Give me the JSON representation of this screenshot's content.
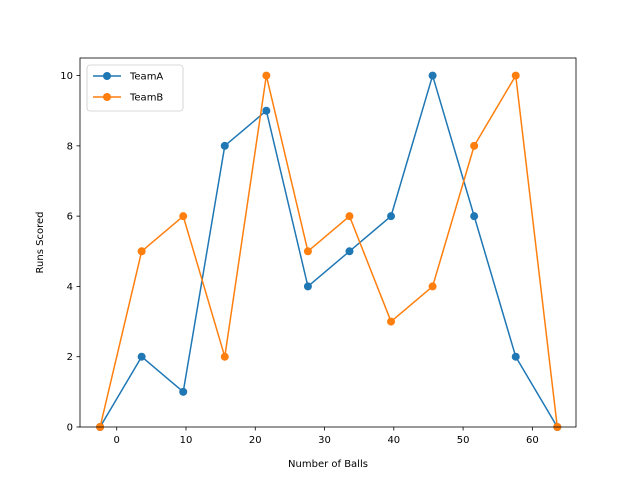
{
  "chart_data": {
    "type": "line",
    "title": "",
    "xlabel": "Number of Balls",
    "ylabel": "Runs Scored",
    "xlim": [
      -5.3,
      66.3
    ],
    "ylim": [
      0,
      10.5
    ],
    "xticks": [
      0,
      10,
      20,
      30,
      40,
      50,
      60
    ],
    "yticks": [
      0,
      2,
      4,
      6,
      8,
      10
    ],
    "xtick_labels": [
      "0",
      "10",
      "20",
      "30",
      "40",
      "50",
      "60"
    ],
    "ytick_labels": [
      "0",
      "2",
      "4",
      "6",
      "8",
      "10"
    ],
    "grid": false,
    "legend": "upper-left",
    "series": [
      {
        "name": "TeamA",
        "color": "#1f77b4",
        "x": [
          -2.4,
          3.6,
          9.6,
          15.6,
          21.6,
          27.6,
          33.6,
          39.6,
          45.6,
          51.6,
          57.6,
          63.6
        ],
        "y": [
          0,
          2,
          1,
          8,
          9,
          4,
          5,
          6,
          10,
          6,
          2,
          0
        ]
      },
      {
        "name": "TeamB",
        "color": "#ff7f0e",
        "x": [
          -2.4,
          3.6,
          9.6,
          15.6,
          21.6,
          27.6,
          33.6,
          39.6,
          45.6,
          51.6,
          57.6,
          63.6
        ],
        "y": [
          0,
          5,
          6,
          2,
          10,
          5,
          6,
          3,
          4,
          8,
          10,
          0
        ]
      }
    ]
  }
}
